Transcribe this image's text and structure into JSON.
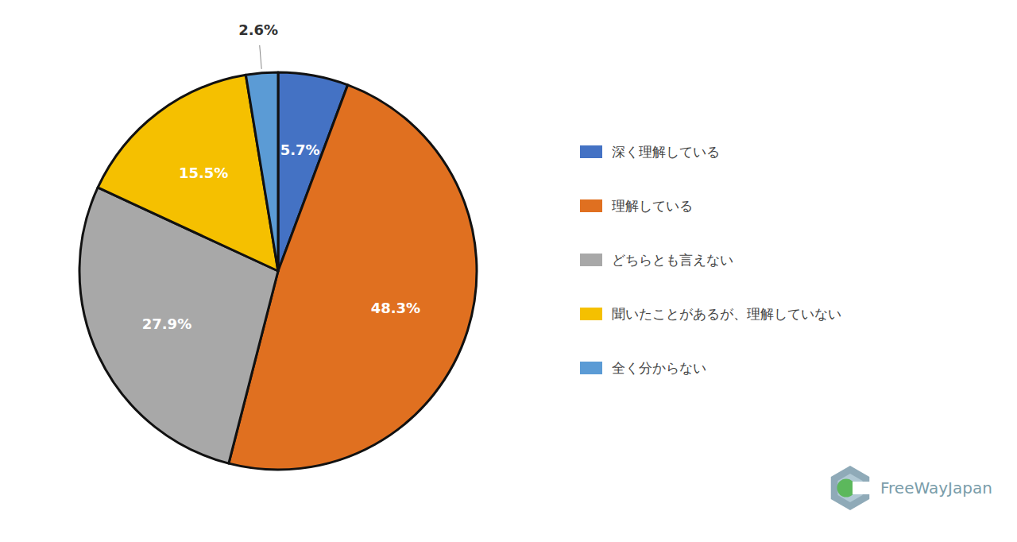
{
  "chart_data": {
    "type": "pie",
    "categories": [
      "深く理解している",
      "理解している",
      "どちらとも言えない",
      "聞いたことがあるが、理解していない",
      "全く分からない"
    ],
    "values": [
      5.7,
      48.3,
      27.9,
      15.5,
      2.6
    ],
    "value_labels": [
      "5.7%",
      "48.3%",
      "27.9%",
      "15.5%",
      "2.6%"
    ],
    "colors": [
      "#4472C4",
      "#E07020",
      "#A8A8A8",
      "#F5C000",
      "#5B9BD5"
    ],
    "data_labels": true,
    "legend": "right",
    "annotations": [
      "FreeWayJapan"
    ]
  }
}
